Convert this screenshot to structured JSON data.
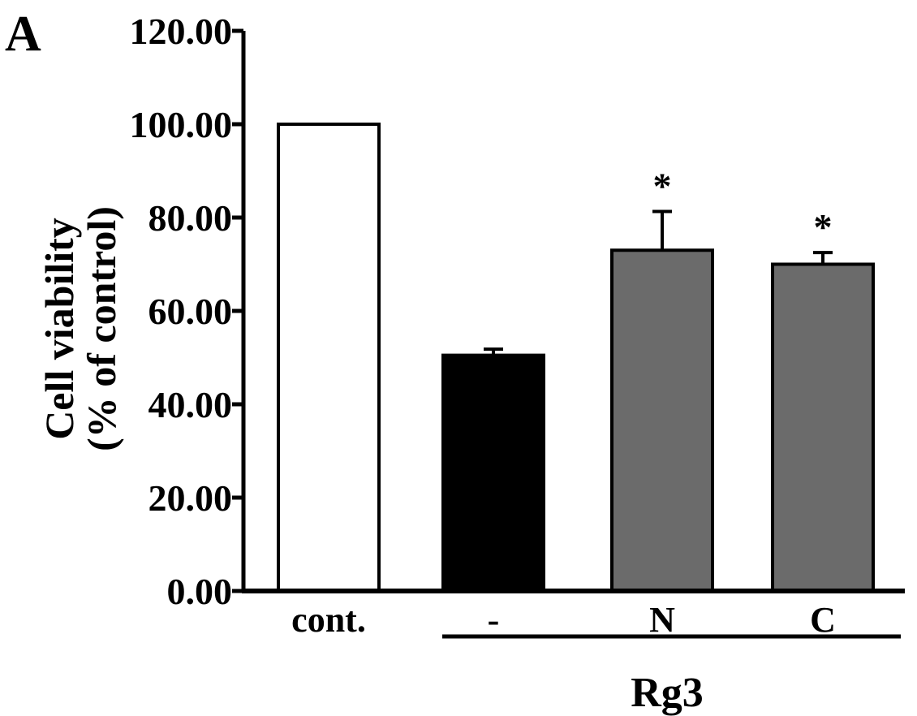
{
  "panel_label": "A",
  "chart_data": {
    "type": "bar",
    "categories": [
      "cont.",
      "-",
      "N",
      "C"
    ],
    "values": [
      100.0,
      50.5,
      73.0,
      70.0
    ],
    "error_upper": [
      0,
      1.3,
      8.3,
      2.5
    ],
    "significance": [
      "",
      "",
      "*",
      "*"
    ],
    "bar_colors": [
      "#ffffff",
      "#000000",
      "#6b6b6b",
      "#6b6b6b"
    ],
    "group_label": "Rg3",
    "group_categories": [
      "-",
      "N",
      "C"
    ],
    "ylabel_lines": [
      "Cell viability",
      "(% of control)"
    ],
    "xlabel": "",
    "title": "",
    "ylim": [
      0,
      120
    ],
    "yticks": [
      0,
      20,
      40,
      60,
      80,
      100,
      120
    ],
    "ytick_labels": [
      "0.00",
      "20.00",
      "40.00",
      "60.00",
      "80.00",
      "100.00",
      "120.00"
    ],
    "grid": false,
    "legend": "none"
  }
}
